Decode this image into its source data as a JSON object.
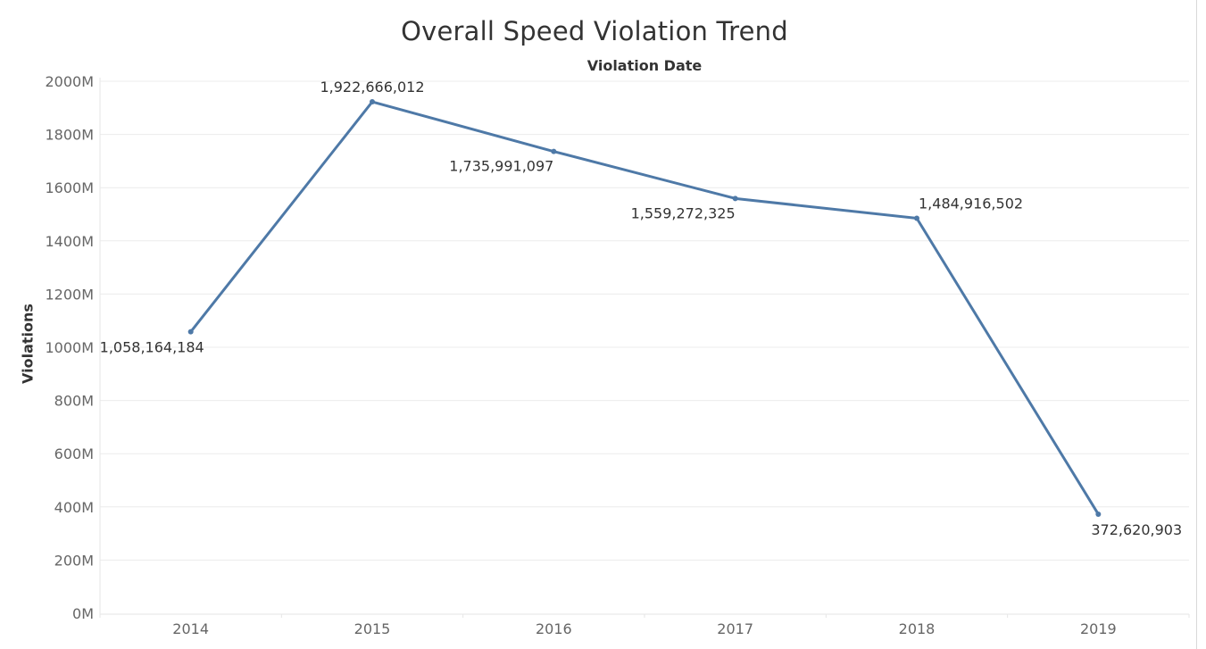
{
  "chart_data": {
    "type": "line",
    "title": "Overall Speed Violation Trend",
    "header": "Violation Date",
    "ylabel": "Violations",
    "xlabel": "",
    "categories": [
      "2014",
      "2015",
      "2016",
      "2017",
      "2018",
      "2019"
    ],
    "series": [
      {
        "values": [
          1058164184,
          1922666012,
          1735991097,
          1559272325,
          1484916502,
          372620903
        ],
        "data_labels": [
          "1,058,164,184",
          "1,922,666,012",
          "1,735,991,097",
          "1,559,272,325",
          "1,484,916,502",
          "372,620,903"
        ]
      }
    ],
    "ylim": [
      0,
      2000000000
    ],
    "y_ticks": [
      0,
      200000000,
      400000000,
      600000000,
      800000000,
      1000000000,
      1200000000,
      1400000000,
      1600000000,
      1800000000,
      2000000000
    ],
    "y_tick_labels": [
      "0M",
      "200M",
      "400M",
      "600M",
      "800M",
      "1000M",
      "1200M",
      "1400M",
      "1600M",
      "1800M",
      "2000M"
    ],
    "grid": true,
    "legend": "none",
    "colors": {
      "line": "#4e79a7",
      "grid": "#ececec",
      "axis": "#e6e6e6",
      "tick_text": "#666666",
      "label_text": "#333333"
    }
  }
}
